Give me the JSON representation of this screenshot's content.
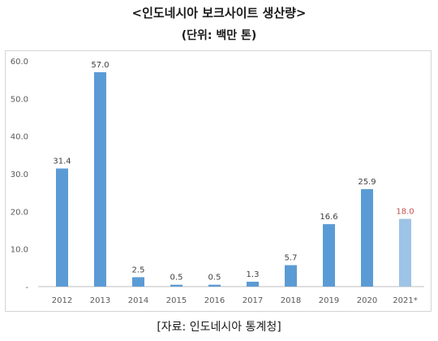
{
  "header": {
    "title": "<인도네시아 보크사이트 생산량>",
    "unit": "(단위: 백만 톤)"
  },
  "footer": {
    "source": "[자료: 인도네시아 통계청]"
  },
  "colors": {
    "bar": "#5b9bd5",
    "bar_estimate": "#9dc3e6",
    "label_estimate": "#c0504d",
    "label": "#404040",
    "axis": "#bfbfbf",
    "tick_text": "#595959"
  },
  "chart_data": {
    "type": "bar",
    "categories": [
      "2012",
      "2013",
      "2014",
      "2015",
      "2016",
      "2017",
      "2018",
      "2019",
      "2020",
      "2021*"
    ],
    "values": [
      31.4,
      57.0,
      2.5,
      0.5,
      0.5,
      1.3,
      5.7,
      16.6,
      25.9,
      18.0
    ],
    "value_labels": [
      "31.4",
      "57.0",
      "2.5",
      "0.5",
      "0.5",
      "1.3",
      "5.7",
      "16.6",
      "25.9",
      "18.0"
    ],
    "estimate_index": 9,
    "title": "<인도네시아 보크사이트 생산량>",
    "subtitle": "(단위: 백만 톤)",
    "xlabel": "",
    "ylabel": "",
    "ylim": [
      0,
      60
    ],
    "yticks": [
      0,
      10,
      20,
      30,
      40,
      50,
      60
    ],
    "ytick_labels": [
      "-",
      "10.0",
      "20.0",
      "30.0",
      "40.0",
      "50.0",
      "60.0"
    ],
    "grid": false,
    "legend": "none"
  }
}
